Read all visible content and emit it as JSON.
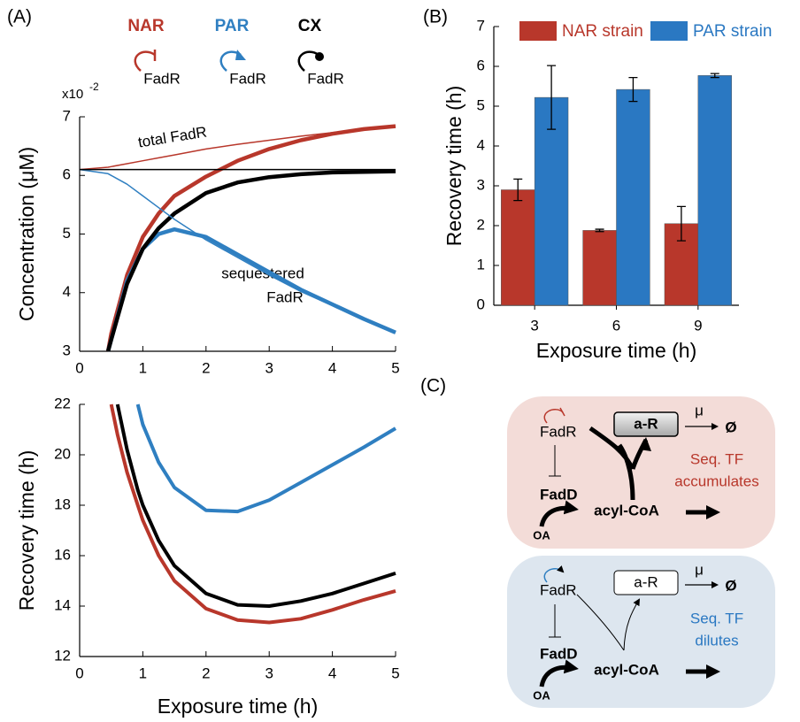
{
  "chart_data": [
    {
      "type": "line",
      "panel_label": "(A)",
      "ylabel": "Concentration (μM)",
      "multiplier": {
        "base": "x10",
        "exponent": "-2"
      },
      "x": [
        0,
        0.45,
        0.5,
        0.75,
        1,
        1.25,
        1.5,
        2,
        2.5,
        3,
        3.5,
        4,
        4.5,
        5
      ],
      "series": [
        {
          "name": "NAR",
          "target": "FadR",
          "color": "#b8372b",
          "width": 4.5,
          "values": [
            null,
            3.0,
            3.3,
            4.3,
            4.95,
            5.35,
            5.65,
            5.98,
            6.25,
            6.45,
            6.6,
            6.71,
            6.79,
            6.84
          ]
        },
        {
          "name": "PAR",
          "target": "FadR",
          "color": "#2f7fc1",
          "width": 4.5,
          "values": [
            null,
            3.0,
            3.2,
            4.2,
            4.75,
            5.0,
            5.08,
            4.95,
            4.65,
            4.35,
            4.05,
            3.8,
            3.55,
            3.32
          ]
        },
        {
          "name": "CX",
          "target": "FadR",
          "color": "#000000",
          "width": 4.5,
          "values": [
            null,
            3.0,
            3.2,
            4.15,
            4.75,
            5.1,
            5.35,
            5.7,
            5.88,
            5.97,
            6.02,
            6.05,
            6.06,
            6.07
          ]
        },
        {
          "color": "#b8372b",
          "width": 1.5,
          "values": [
            6.1,
            6.14,
            6.15,
            6.2,
            6.25,
            6.3,
            6.35,
            6.45,
            6.53,
            6.6,
            6.67,
            6.73,
            6.79,
            6.84
          ]
        },
        {
          "color": "#2f7fc1",
          "width": 1.5,
          "values": [
            6.1,
            6.03,
            6.0,
            5.85,
            5.65,
            5.45,
            5.25,
            4.9,
            4.6,
            4.3,
            4.02,
            3.78,
            3.54,
            3.32
          ]
        },
        {
          "color": "#000000",
          "width": 1.5,
          "values": [
            6.1,
            6.1,
            6.1,
            6.1,
            6.1,
            6.1,
            6.1,
            6.1,
            6.1,
            6.1,
            6.1,
            6.1,
            6.1,
            6.1
          ]
        }
      ],
      "annotations": [
        "total FadR",
        "sequestered",
        "FadR"
      ],
      "xlim": [
        0,
        5
      ],
      "xticks": [
        0,
        1,
        2,
        3,
        4,
        5
      ],
      "ylim": [
        3,
        7
      ],
      "yticks": [
        3,
        4,
        5,
        6,
        7
      ]
    },
    {
      "type": "line",
      "xlabel": "Exposure time (h)",
      "ylabel": "Recovery time (h)",
      "x": [
        0.5,
        0.6,
        0.75,
        0.92,
        1,
        1.25,
        1.5,
        2,
        2.5,
        3,
        3.5,
        4,
        4.5,
        5
      ],
      "series": [
        {
          "color": "#2f7fc1",
          "width": 4,
          "values": [
            null,
            null,
            null,
            22,
            21.2,
            19.7,
            18.7,
            17.8,
            17.75,
            18.2,
            18.9,
            19.6,
            20.3,
            21.05
          ]
        },
        {
          "color": "#000000",
          "width": 4,
          "values": [
            null,
            22,
            20.2,
            18.6,
            18.0,
            16.6,
            15.6,
            14.5,
            14.05,
            14.0,
            14.2,
            14.5,
            14.9,
            15.3
          ]
        },
        {
          "color": "#b8372b",
          "width": 4,
          "values": [
            22,
            20.8,
            19.3,
            18.0,
            17.4,
            16.0,
            15.0,
            13.9,
            13.45,
            13.35,
            13.5,
            13.85,
            14.25,
            14.6
          ]
        }
      ],
      "xlim": [
        0,
        5
      ],
      "xticks": [
        0,
        1,
        2,
        3,
        4,
        5
      ],
      "ylim": [
        12,
        22
      ],
      "yticks": [
        12,
        14,
        16,
        18,
        20,
        22
      ]
    },
    {
      "type": "bar",
      "panel_label": "(B)",
      "xlabel": "Exposure time (h)",
      "ylabel": "Recovery time (h)",
      "categories": [
        "3",
        "6",
        "9"
      ],
      "series": [
        {
          "name": "NAR strain",
          "color": "#b8372b",
          "values": [
            2.9,
            1.88,
            2.05
          ],
          "errors": [
            0.27,
            0.03,
            0.43
          ]
        },
        {
          "name": "PAR strain",
          "color": "#2a78c2",
          "values": [
            5.22,
            5.42,
            5.77
          ],
          "errors": [
            0.8,
            0.3,
            0.05
          ]
        }
      ],
      "ylim": [
        0,
        7
      ],
      "yticks": [
        0,
        1,
        2,
        3,
        4,
        5,
        6,
        7
      ]
    }
  ],
  "diagram": {
    "panel_label": "(C)",
    "panels": [
      {
        "regulator": "FadR",
        "complex": "a-R",
        "rate": "μ",
        "sink": "Ø",
        "note": [
          "Seq. TF",
          "accumulates"
        ],
        "enzyme": "FadD",
        "metabolite": "acyl-CoA",
        "input": "OA"
      },
      {
        "regulator": "FadR",
        "complex": "a-R",
        "rate": "μ",
        "sink": "Ø",
        "note": [
          "Seq. TF",
          "dilutes"
        ],
        "enzyme": "FadD",
        "metabolite": "acyl-CoA",
        "input": "OA"
      }
    ]
  }
}
